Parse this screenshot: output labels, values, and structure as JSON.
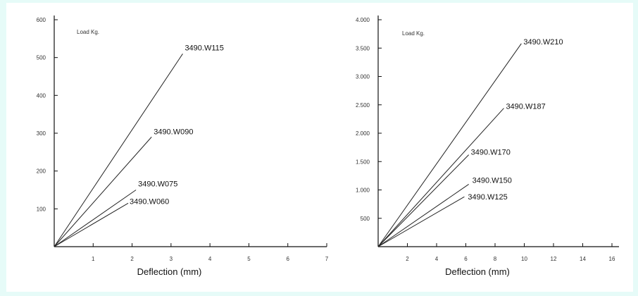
{
  "chart_data": [
    {
      "type": "line",
      "title": "",
      "corner_label": "Load Kg.",
      "xlabel": "Deflection (mm)",
      "ylabel": "",
      "xlim": [
        0,
        7
      ],
      "ylim": [
        0,
        600
      ],
      "xticks": [
        "1",
        "2",
        "3",
        "4",
        "5",
        "6",
        "7"
      ],
      "yticks": [
        "100",
        "200",
        "300",
        "400",
        "500",
        "600"
      ],
      "grid": false,
      "series": [
        {
          "name": "3490.W115",
          "x": [
            0,
            3.3
          ],
          "y": [
            0,
            510
          ]
        },
        {
          "name": "3490.W090",
          "x": [
            0,
            2.5
          ],
          "y": [
            0,
            290
          ]
        },
        {
          "name": "3490.W075",
          "x": [
            0,
            2.1
          ],
          "y": [
            0,
            150
          ]
        },
        {
          "name": "3490.W060",
          "x": [
            0,
            1.9
          ],
          "y": [
            0,
            115
          ]
        }
      ]
    },
    {
      "type": "line",
      "title": "",
      "corner_label": "Load Kg.",
      "xlabel": "Deflection (mm)",
      "ylabel": "",
      "xlim": [
        0,
        16
      ],
      "ylim": [
        0,
        4000
      ],
      "xticks": [
        "2",
        "4",
        "6",
        "8",
        "10",
        "12",
        "14",
        "16"
      ],
      "yticks": [
        "500",
        "1.000",
        "1.500",
        "2.000",
        "2.500",
        "3.000",
        "3.500",
        "4.000"
      ],
      "grid": false,
      "series": [
        {
          "name": "3490.W210",
          "x": [
            0,
            9.8
          ],
          "y": [
            0,
            3580
          ]
        },
        {
          "name": "3490.W187",
          "x": [
            0,
            8.6
          ],
          "y": [
            0,
            2440
          ]
        },
        {
          "name": "3490.W170",
          "x": [
            0,
            6.2
          ],
          "y": [
            0,
            1620
          ]
        },
        {
          "name": "3490.W150",
          "x": [
            0,
            6.2
          ],
          "y": [
            0,
            1100
          ]
        },
        {
          "name": "3490.W125",
          "x": [
            0,
            5.9
          ],
          "y": [
            0,
            880
          ]
        }
      ]
    }
  ]
}
